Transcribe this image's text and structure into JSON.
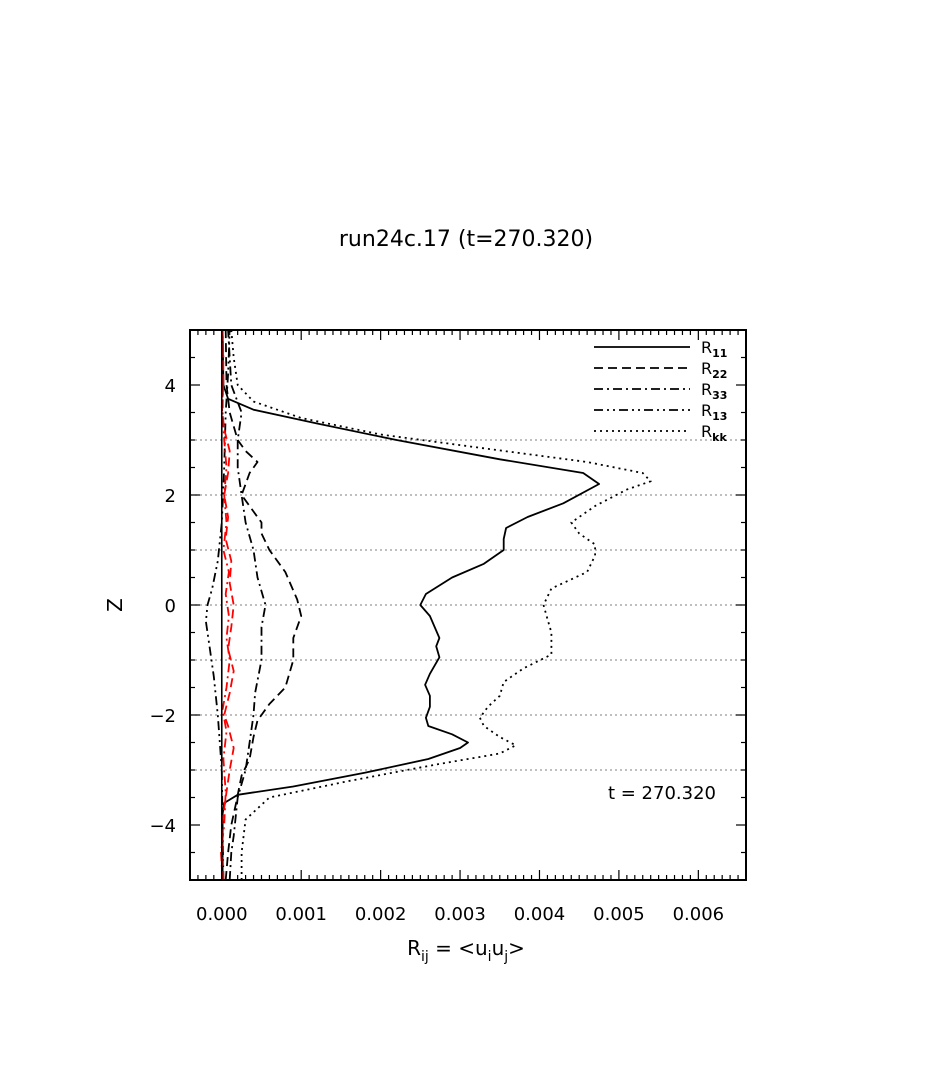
{
  "chart_data": {
    "type": "line",
    "title": "run24c.17 (t=270.320)",
    "xlabel": {
      "base": "R",
      "sub": "ij",
      "eq": " = <u",
      "sub2": "i",
      "mid": "u",
      "sub3": "j",
      "end": ">"
    },
    "ylabel": "Z",
    "xlim": [
      -0.0004,
      0.0066
    ],
    "ylim": [
      -5,
      5
    ],
    "x_ticks": [
      "0.000",
      "0.001",
      "0.002",
      "0.003",
      "0.004",
      "0.005",
      "0.006"
    ],
    "x_tick_values": [
      0,
      0.001,
      0.002,
      0.003,
      0.004,
      0.005,
      0.006
    ],
    "y_ticks": [
      "−4",
      "−2",
      "0",
      "2",
      "4"
    ],
    "y_tick_values": [
      -4,
      -2,
      0,
      2,
      4
    ],
    "grid_y": [
      -3,
      -2,
      -1,
      0,
      1,
      2,
      3
    ],
    "legend_position": "top-right",
    "annotation": "t = 270.320",
    "series": [
      {
        "name": "R",
        "sub": "11",
        "dash": "solid",
        "color": "#000000",
        "points": [
          [
            1e-05,
            -5
          ],
          [
            1e-05,
            -4.2
          ],
          [
            1e-05,
            -3.8
          ],
          [
            3e-05,
            -3.6
          ],
          [
            0.0002,
            -3.45
          ],
          [
            0.0009,
            -3.3
          ],
          [
            0.0018,
            -3.05
          ],
          [
            0.0026,
            -2.8
          ],
          [
            0.003,
            -2.6
          ],
          [
            0.0031,
            -2.5
          ],
          [
            0.0029,
            -2.35
          ],
          [
            0.0026,
            -2.2
          ],
          [
            0.00257,
            -2.05
          ],
          [
            0.00262,
            -1.85
          ],
          [
            0.00262,
            -1.65
          ],
          [
            0.00256,
            -1.45
          ],
          [
            0.00262,
            -1.25
          ],
          [
            0.00274,
            -0.95
          ],
          [
            0.0027,
            -0.75
          ],
          [
            0.00274,
            -0.6
          ],
          [
            0.00262,
            -0.2
          ],
          [
            0.0025,
            0
          ],
          [
            0.00257,
            0.2
          ],
          [
            0.0029,
            0.5
          ],
          [
            0.0033,
            0.75
          ],
          [
            0.00355,
            1
          ],
          [
            0.00355,
            1.2
          ],
          [
            0.00358,
            1.4
          ],
          [
            0.00385,
            1.6
          ],
          [
            0.0043,
            1.85
          ],
          [
            0.00475,
            2.2
          ],
          [
            0.00455,
            2.4
          ],
          [
            0.0035,
            2.65
          ],
          [
            0.0022,
            3
          ],
          [
            0.0012,
            3.3
          ],
          [
            0.0004,
            3.55
          ],
          [
            8e-05,
            3.75
          ],
          [
            2e-05,
            4
          ],
          [
            1e-05,
            5
          ]
        ]
      },
      {
        "name": "R",
        "sub": "22",
        "dash": "dashed",
        "color": "#000000",
        "points": [
          [
            5e-05,
            -5
          ],
          [
            8e-05,
            -4.5
          ],
          [
            0.00012,
            -4
          ],
          [
            0.00018,
            -3.6
          ],
          [
            0.00025,
            -3.1
          ],
          [
            0.00035,
            -2.8
          ],
          [
            0.0004,
            -2.4
          ],
          [
            0.00045,
            -2.1
          ],
          [
            0.0006,
            -1.8
          ],
          [
            0.0008,
            -1.5
          ],
          [
            0.0009,
            -1
          ],
          [
            0.0009,
            -0.6
          ],
          [
            0.001,
            -0.2
          ],
          [
            0.00095,
            0.1
          ],
          [
            0.0008,
            0.6
          ],
          [
            0.0006,
            1
          ],
          [
            0.0005,
            1.3
          ],
          [
            0.0005,
            1.5
          ],
          [
            0.0004,
            1.7
          ],
          [
            0.00025,
            2
          ],
          [
            0.00035,
            2.4
          ],
          [
            0.00045,
            2.6
          ],
          [
            0.0003,
            2.8
          ],
          [
            0.0002,
            3
          ],
          [
            0.0001,
            3.5
          ],
          [
            6e-05,
            4
          ],
          [
            5e-05,
            5
          ]
        ]
      },
      {
        "name": "R",
        "sub": "33",
        "dash": "dashdot",
        "color": "#000000",
        "points": [
          [
            0.0001,
            -5
          ],
          [
            0.00012,
            -4.5
          ],
          [
            0.00015,
            -4.2
          ],
          [
            0.0002,
            -3.5
          ],
          [
            0.0003,
            -3
          ],
          [
            0.00035,
            -2.5
          ],
          [
            0.0004,
            -2
          ],
          [
            0.00042,
            -1.6
          ],
          [
            0.0005,
            -1
          ],
          [
            0.0005,
            -0.4
          ],
          [
            0.00055,
            0
          ],
          [
            0.00045,
            0.5
          ],
          [
            0.0004,
            1
          ],
          [
            0.0003,
            1.5
          ],
          [
            0.00025,
            2
          ],
          [
            0.0002,
            2.5
          ],
          [
            0.0002,
            3
          ],
          [
            0.00025,
            3.5
          ],
          [
            0.00012,
            4
          ],
          [
            0.0001,
            4.5
          ],
          [
            8e-05,
            5
          ]
        ]
      },
      {
        "name": "R",
        "sub": "13",
        "dash": "dashdotdot",
        "color": "#000000",
        "points": [
          [
            2e-05,
            -5
          ],
          [
            1e-05,
            -4
          ],
          [
            0,
            -3
          ],
          [
            -5e-05,
            -2
          ],
          [
            -0.0001,
            -1.3
          ],
          [
            -0.00015,
            -0.8
          ],
          [
            -0.0002,
            -0.3
          ],
          [
            -0.00018,
            0
          ],
          [
            -0.00012,
            0.3
          ],
          [
            -5e-05,
            0.8
          ],
          [
            0,
            1.5
          ],
          [
            3e-05,
            2.5
          ],
          [
            5e-05,
            3.5
          ],
          [
            8e-05,
            4.2
          ],
          [
            0.0001,
            5
          ]
        ]
      },
      {
        "name": "R",
        "sub": "kk",
        "dash": "dotted",
        "color": "#000000",
        "points": [
          [
            0.00025,
            -5
          ],
          [
            0.00025,
            -4.5
          ],
          [
            0.0003,
            -3.9
          ],
          [
            0.0006,
            -3.5
          ],
          [
            0.0016,
            -3.2
          ],
          [
            0.0027,
            -2.9
          ],
          [
            0.0035,
            -2.7
          ],
          [
            0.0037,
            -2.55
          ],
          [
            0.0035,
            -2.4
          ],
          [
            0.0033,
            -2.2
          ],
          [
            0.00325,
            -2.05
          ],
          [
            0.00335,
            -1.85
          ],
          [
            0.0035,
            -1.65
          ],
          [
            0.00355,
            -1.4
          ],
          [
            0.0038,
            -1.15
          ],
          [
            0.00415,
            -0.9
          ],
          [
            0.00415,
            -0.5
          ],
          [
            0.0041,
            -0.25
          ],
          [
            0.00405,
            0
          ],
          [
            0.00415,
            0.3
          ],
          [
            0.0046,
            0.6
          ],
          [
            0.0047,
            0.9
          ],
          [
            0.0047,
            1.1
          ],
          [
            0.0045,
            1.3
          ],
          [
            0.0044,
            1.5
          ],
          [
            0.0047,
            1.8
          ],
          [
            0.0051,
            2.1
          ],
          [
            0.0054,
            2.25
          ],
          [
            0.0053,
            2.4
          ],
          [
            0.0046,
            2.6
          ],
          [
            0.0033,
            2.85
          ],
          [
            0.002,
            3.1
          ],
          [
            0.001,
            3.4
          ],
          [
            0.0004,
            3.7
          ],
          [
            0.0002,
            4
          ],
          [
            0.00015,
            4.5
          ],
          [
            0.00012,
            5
          ]
        ]
      }
    ],
    "red_series": [
      {
        "color": "#ff0000",
        "dash": "dashed",
        "points": [
          [
            2e-05,
            -5
          ],
          [
            0,
            -4
          ],
          [
            5e-05,
            -3.5
          ],
          [
            0.0001,
            -3
          ],
          [
            0.00015,
            -2.6
          ],
          [
            8e-05,
            -2.2
          ],
          [
            3e-05,
            -2
          ],
          [
            0.0001,
            -1.6
          ],
          [
            0.00015,
            -1.2
          ],
          [
            8e-05,
            -0.8
          ],
          [
            0.00012,
            -0.4
          ],
          [
            0.00015,
            0
          ],
          [
            0.0001,
            0.4
          ],
          [
            0.00012,
            0.8
          ],
          [
            5e-05,
            1.2
          ],
          [
            8e-05,
            1.6
          ],
          [
            3e-05,
            2
          ],
          [
            8e-05,
            2.4
          ],
          [
            0.0001,
            2.8
          ],
          [
            3e-05,
            3.2
          ],
          [
            0,
            3.6
          ],
          [
            2e-05,
            4
          ],
          [
            1e-05,
            5
          ]
        ]
      },
      {
        "color": "#ff0000",
        "dash": "dashdot",
        "points": [
          [
            1e-05,
            -5
          ],
          [
            -1e-05,
            -4.5
          ],
          [
            3e-05,
            -4
          ],
          [
            5e-05,
            -3.4
          ],
          [
            2e-05,
            -2.8
          ],
          [
            6e-05,
            -2.3
          ],
          [
            1e-05,
            -1.9
          ],
          [
            6e-05,
            -1.5
          ],
          [
            0.0001,
            -1
          ],
          [
            6e-05,
            -0.6
          ],
          [
            9e-05,
            -0.2
          ],
          [
            5e-05,
            0.2
          ],
          [
            9e-05,
            0.6
          ],
          [
            2e-05,
            1
          ],
          [
            6e-05,
            1.5
          ],
          [
            3e-05,
            2
          ],
          [
            6e-05,
            2.5
          ],
          [
            3e-05,
            3
          ],
          [
            1e-05,
            3.5
          ],
          [
            2e-05,
            4.5
          ],
          [
            1e-05,
            5
          ]
        ]
      }
    ]
  }
}
